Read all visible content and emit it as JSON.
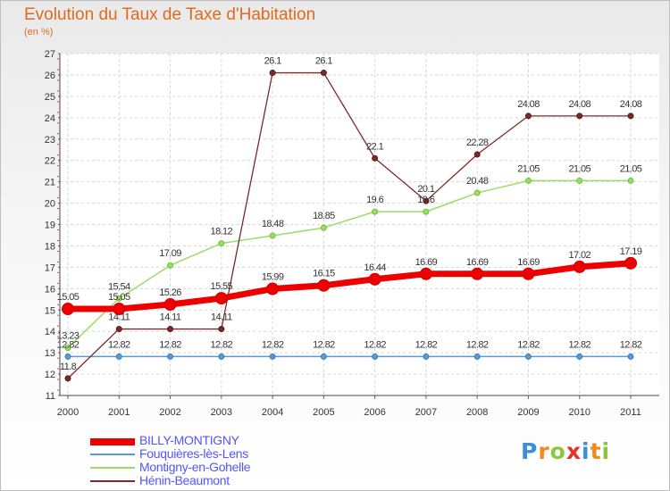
{
  "header": {
    "title": "Evolution du Taux de Taxe d'Habitation",
    "unit": "(en %)"
  },
  "logo": {
    "letters": [
      "P",
      "r",
      "o",
      "x",
      "i",
      "t",
      "i"
    ],
    "colors": [
      "#3a8fd6",
      "#f08a1c",
      "#8cc63f",
      "#e8302a",
      "#3a8fd6",
      "#f08a1c",
      "#8cc63f"
    ]
  },
  "chart_data": {
    "type": "line",
    "x": [
      "2000",
      "2001",
      "2002",
      "2003",
      "2004",
      "2005",
      "2006",
      "2007",
      "2008",
      "2009",
      "2010",
      "2011"
    ],
    "ylim": [
      11,
      27
    ],
    "yticks": [
      "11",
      "12",
      "13",
      "14",
      "15",
      "16",
      "17",
      "18",
      "19",
      "20",
      "21",
      "22",
      "23",
      "24",
      "25",
      "26",
      "27"
    ],
    "grid": true,
    "series": [
      {
        "name": "BILLY-MONTIGNY",
        "color": "#ee0000",
        "values": [
          15.05,
          15.05,
          15.26,
          15.55,
          15.99,
          16.15,
          16.44,
          16.69,
          16.69,
          16.69,
          17.02,
          17.19
        ],
        "labels": [
          "15.05",
          "15.05",
          "15.26",
          "15.55",
          "15.99",
          "16.15",
          "16.44",
          "16.69",
          "16.69",
          "16.69",
          "17.02",
          "17.19"
        ]
      },
      {
        "name": "Fouquières-lès-Lens",
        "color": "#5b9bd5",
        "values": [
          12.82,
          12.82,
          12.82,
          12.82,
          12.82,
          12.82,
          12.82,
          12.82,
          12.82,
          12.82,
          12.82,
          12.82
        ],
        "labels": [
          "12.82",
          "12.82",
          "12.82",
          "12.82",
          "12.82",
          "12.82",
          "12.82",
          "12.82",
          "12.82",
          "12.82",
          "12.82",
          "12.82"
        ]
      },
      {
        "name": "Montigny-en-Gohelle",
        "color": "#99dd66",
        "values": [
          13.23,
          15.54,
          17.09,
          18.12,
          18.48,
          18.85,
          19.6,
          19.6,
          20.48,
          21.05,
          21.05,
          21.05
        ],
        "labels": [
          "13.23",
          "15.54",
          "17.09",
          "18.12",
          "18.48",
          "18.85",
          "19.6",
          "19.6",
          "20.48",
          "21.05",
          "21.05",
          "21.05"
        ]
      },
      {
        "name": "Hénin-Beaumont",
        "color": "#7a2a2a",
        "values": [
          11.8,
          14.11,
          14.11,
          14.11,
          26.1,
          26.1,
          22.1,
          20.1,
          22.28,
          24.08,
          24.08,
          24.08
        ],
        "labels": [
          "11.8",
          "14.11",
          "14.11",
          "14.11",
          "26.1",
          "26.1",
          "22.1",
          "20.1",
          "22.28",
          "24.08",
          "24.08",
          "24.08"
        ]
      }
    ],
    "legend_position": "bottom-left"
  }
}
